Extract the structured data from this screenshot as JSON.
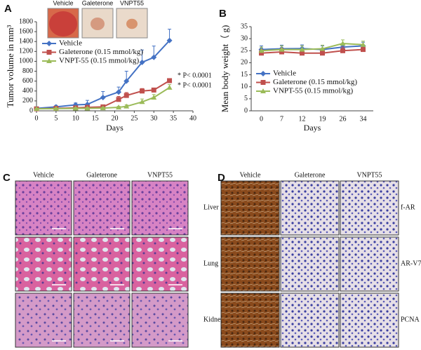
{
  "chart_data": [
    {
      "type": "line",
      "panel": "A",
      "images": [
        "Vehicle",
        "Galeterone",
        "VNPT55"
      ],
      "x": [
        0,
        5,
        10,
        13,
        17,
        21,
        23,
        27,
        30,
        34
      ],
      "series": [
        {
          "name": "Vehicle",
          "color": "#4472c4",
          "marker": "diamond",
          "values": [
            50,
            80,
            120,
            130,
            270,
            380,
            600,
            980,
            1080,
            1420
          ],
          "errors": [
            15,
            30,
            40,
            80,
            120,
            100,
            200,
            250,
            230,
            230
          ]
        },
        {
          "name": "Galeterone (0.15 mmol/kg)",
          "color": "#c0504d",
          "marker": "square",
          "values": [
            40,
            50,
            60,
            70,
            80,
            230,
            310,
            400,
            420,
            610
          ],
          "errors": [
            10,
            15,
            20,
            25,
            30,
            60,
            60,
            50,
            40,
            40
          ]
        },
        {
          "name": "VNPT-55  (0.15 mmol/kg)",
          "color": "#9bbb59",
          "marker": "triangle",
          "values": [
            40,
            45,
            50,
            50,
            55,
            70,
            90,
            180,
            270,
            470
          ],
          "errors": [
            10,
            10,
            15,
            15,
            15,
            20,
            30,
            60,
            60,
            60
          ]
        }
      ],
      "annotations": [
        "* P< 0.0001",
        "* P< 0.0001"
      ],
      "x_label": "Days",
      "y_label": "Tumor volume in mm³",
      "xlim": [
        0,
        40
      ],
      "xticks": [
        0,
        5,
        10,
        15,
        20,
        25,
        30,
        35,
        40
      ],
      "ylim": [
        0,
        1800
      ],
      "yticks": [
        0,
        200,
        400,
        600,
        800,
        1000,
        1200,
        1400,
        1600,
        1800
      ]
    },
    {
      "type": "line",
      "panel": "B",
      "categories": [
        "0",
        "7",
        "12",
        "19",
        "26",
        "34"
      ],
      "series": [
        {
          "name": "Vehicle",
          "color": "#4472c4",
          "marker": "diamond",
          "values": [
            25.5,
            25.8,
            25.9,
            25.5,
            26.5,
            27
          ],
          "errors": [
            1.5,
            1.5,
            1.5,
            1.5,
            1.5,
            1.5
          ]
        },
        {
          "name": "Galeterone  (0.15 mmol/kg)",
          "color": "#c0504d",
          "marker": "square",
          "values": [
            24,
            24.5,
            24,
            24,
            25,
            25.5
          ],
          "errors": [
            1.5,
            1.5,
            1.5,
            1.5,
            1.5,
            1.5
          ]
        },
        {
          "name": "VNPT-55  (0.15 mmol/kg)",
          "color": "#9bbb59",
          "marker": "triangle",
          "values": [
            25,
            25.5,
            25.5,
            25.8,
            28,
            27.5
          ],
          "errors": [
            1.5,
            1.5,
            1.5,
            1.5,
            1.5,
            1.5
          ]
        }
      ],
      "x_label": "Days",
      "y_label": "Mean body weight（ g)",
      "ylim": [
        0,
        35
      ],
      "yticks": [
        0,
        5,
        10,
        15,
        20,
        25,
        30,
        35
      ]
    }
  ],
  "histology": {
    "panel": "C",
    "columns": [
      "Vehicle",
      "Galeterone",
      "VNPT55"
    ],
    "rows": [
      "Liver",
      "Lung",
      "Kidney"
    ]
  },
  "ihc": {
    "panel": "D",
    "columns": [
      "Vehicle",
      "Galeterone",
      "VNPT55"
    ],
    "rows": [
      "f-AR",
      "AR-V7",
      "PCNA"
    ]
  }
}
